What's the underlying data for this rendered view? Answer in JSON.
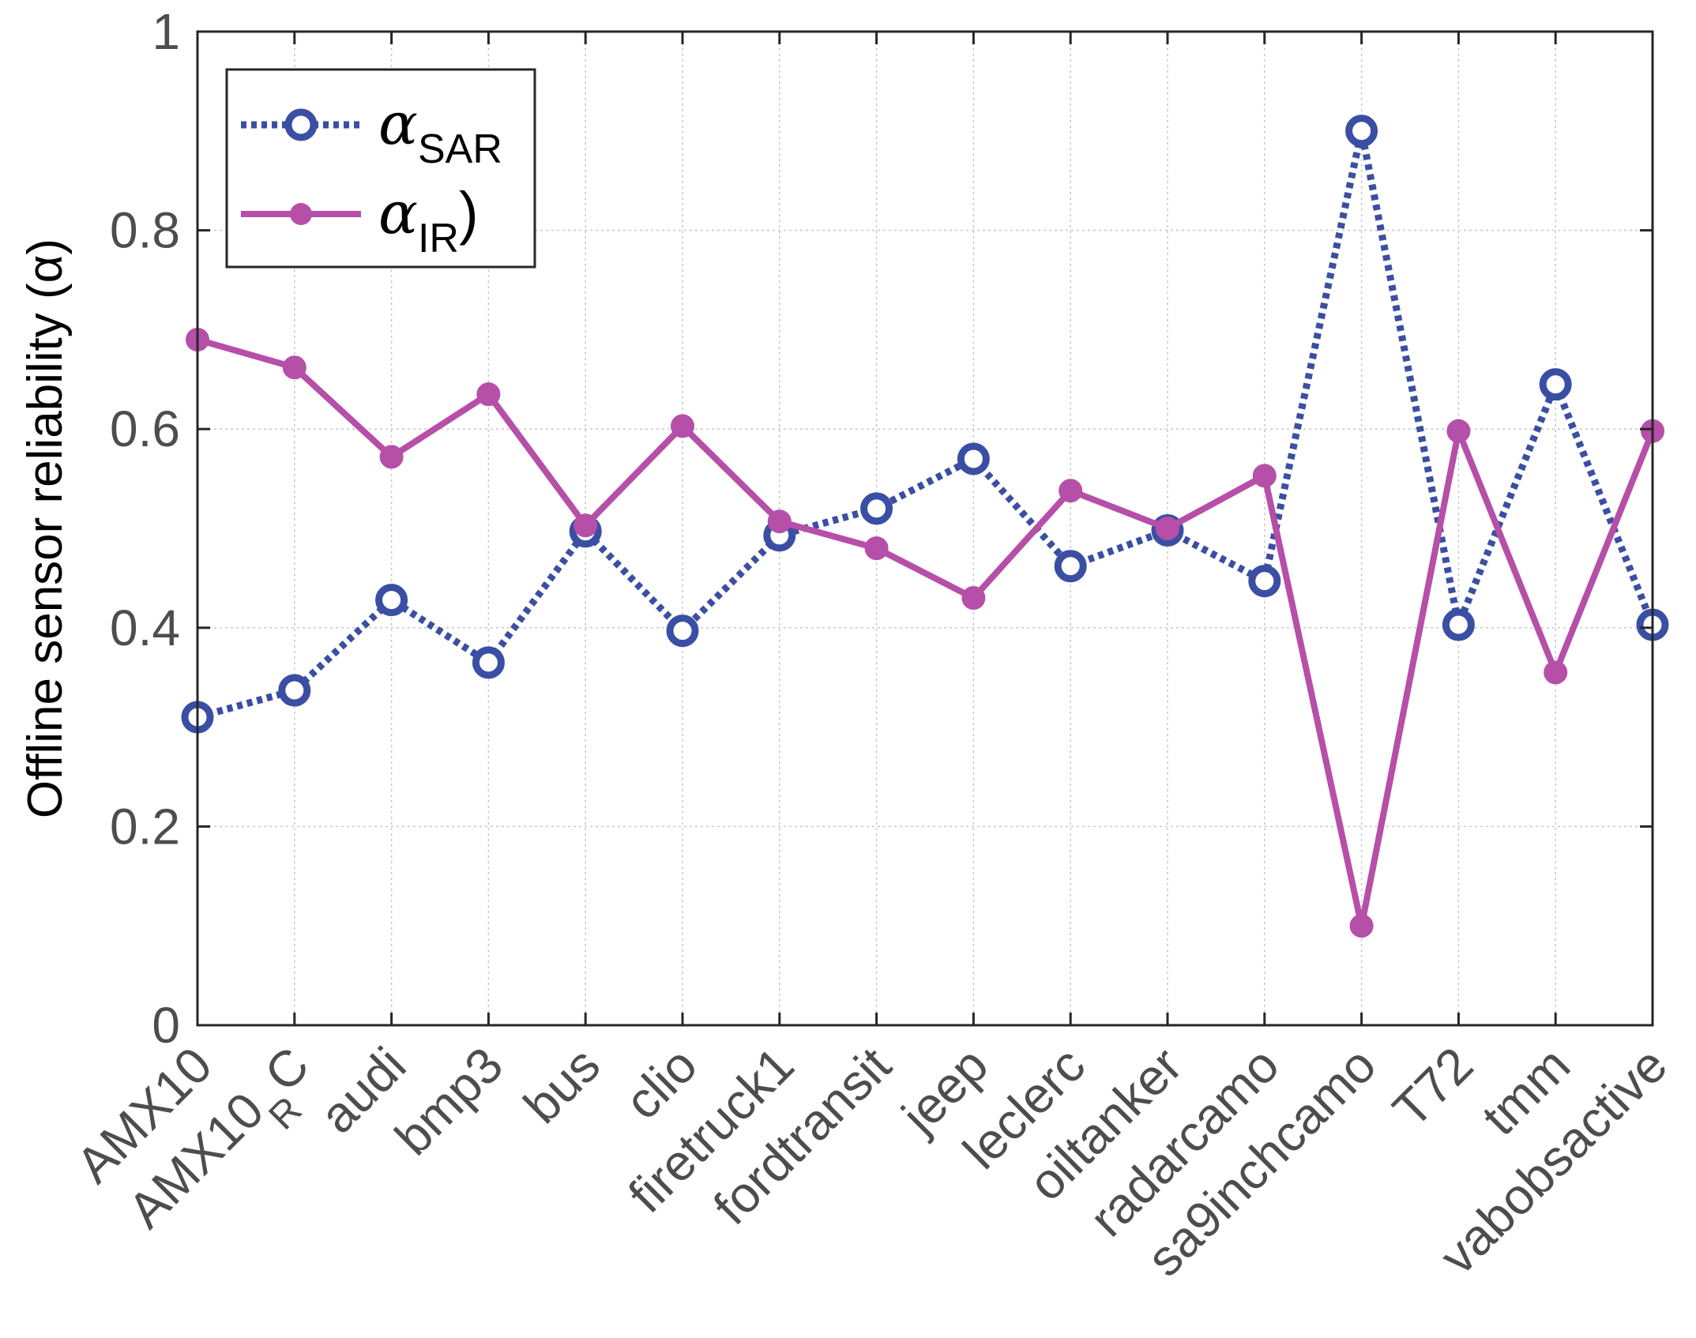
{
  "chart_data": {
    "type": "line",
    "title": "",
    "xlabel": "",
    "ylabel": "Offline sensor reliability (α)",
    "ylim": [
      0,
      1
    ],
    "yticks": [
      "0",
      "0.2",
      "0.4",
      "0.6",
      "0.8",
      "1"
    ],
    "ytick_values": [
      0,
      0.2,
      0.4,
      0.6,
      0.8,
      1
    ],
    "grid": true,
    "legend_position": "top-left",
    "categories": [
      "AMX10",
      "AMX10_RC",
      "audi",
      "bmp3",
      "bus",
      "clio",
      "firetruck1",
      "fordtransit",
      "jeep",
      "leclerc",
      "oiltanker",
      "radarcamo",
      "sa9inchcamo",
      "T72",
      "tmm",
      "vabobsactive"
    ],
    "amx10rc_label": {
      "main": "AMX10",
      "subscript": "R",
      "suffix": "C"
    },
    "series": [
      {
        "name": "α_SAR",
        "legend_symbol": "α",
        "legend_subscript": "SAR",
        "legend_suffix": "",
        "color": "#3a4fa3",
        "line_style": "dotted",
        "marker": "open-circle",
        "values": [
          0.31,
          0.337,
          0.428,
          0.365,
          0.497,
          0.397,
          0.493,
          0.52,
          0.57,
          0.462,
          0.498,
          0.447,
          0.9,
          0.403,
          0.645,
          0.403
        ]
      },
      {
        "name": "α_IR)",
        "legend_symbol": "α",
        "legend_subscript": "IR",
        "legend_suffix": ")",
        "color": "#b64fa8",
        "line_style": "solid",
        "marker": "filled-circle",
        "values": [
          0.69,
          0.662,
          0.572,
          0.635,
          0.503,
          0.603,
          0.507,
          0.48,
          0.43,
          0.538,
          0.5,
          0.553,
          0.1,
          0.598,
          0.355,
          0.598
        ]
      }
    ]
  }
}
